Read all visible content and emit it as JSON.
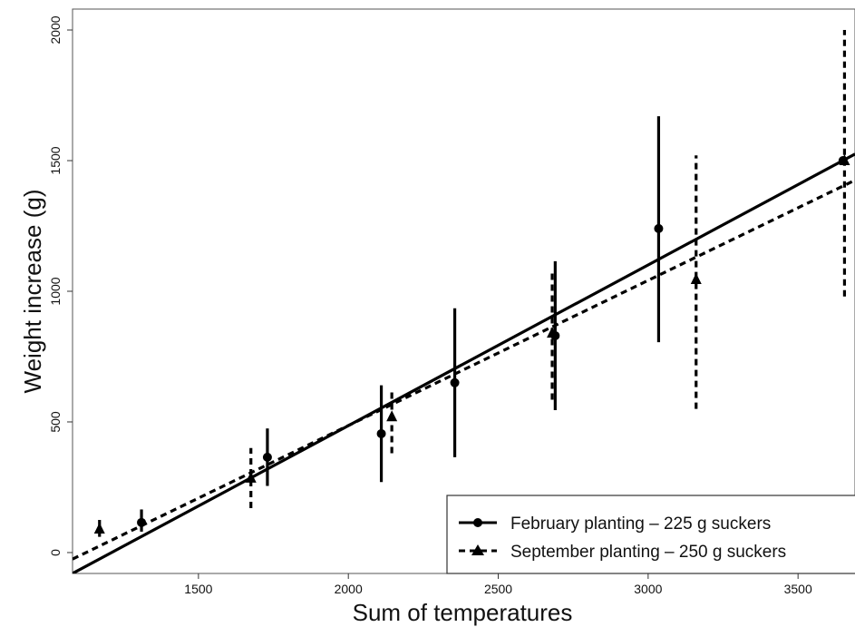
{
  "chart_data": {
    "type": "scatter",
    "title": "",
    "xlabel": "Sum of temperatures",
    "ylabel": "Weight increase (g)",
    "xlim": [
      1080,
      3690
    ],
    "ylim": [
      -80,
      2080
    ],
    "xticks": [
      1500,
      2000,
      2500,
      3000,
      3500
    ],
    "yticks": [
      0,
      500,
      1000,
      1500,
      2000
    ],
    "xtick_labels": [
      "1500",
      "2000",
      "2500",
      "3000",
      "3500"
    ],
    "ytick_labels": [
      "0",
      "500",
      "1000",
      "1500",
      "2000"
    ],
    "grid": false,
    "legend_position": "bottom-right",
    "series": [
      {
        "name": "February planting – 225 g suckers",
        "marker": "circle",
        "line_style": "solid",
        "color": "#000000",
        "x": [
          1310,
          1730,
          2110,
          2355,
          2690,
          3035,
          3650
        ],
        "y": [
          115,
          365,
          455,
          650,
          830,
          1240,
          1500
        ],
        "err_low": [
          80,
          255,
          270,
          365,
          545,
          805,
          1500
        ],
        "err_high": [
          165,
          475,
          640,
          935,
          1115,
          1670,
          1500
        ],
        "fit_line": {
          "x": [
            1080,
            3690
          ],
          "y": [
            -80,
            1525
          ]
        }
      },
      {
        "name": "September planting – 250 g suckers",
        "marker": "triangle",
        "line_style": "dashed",
        "color": "#000000",
        "x": [
          1170,
          1675,
          2145,
          2680,
          3160,
          3655
        ],
        "y": [
          90,
          285,
          520,
          840,
          1045,
          1500
        ],
        "err_low": [
          60,
          170,
          380,
          585,
          550,
          980
        ],
        "err_high": [
          125,
          400,
          615,
          1085,
          1520,
          2000
        ],
        "fit_line": {
          "x": [
            1080,
            3690
          ],
          "y": [
            -25,
            1425
          ]
        }
      }
    ]
  }
}
